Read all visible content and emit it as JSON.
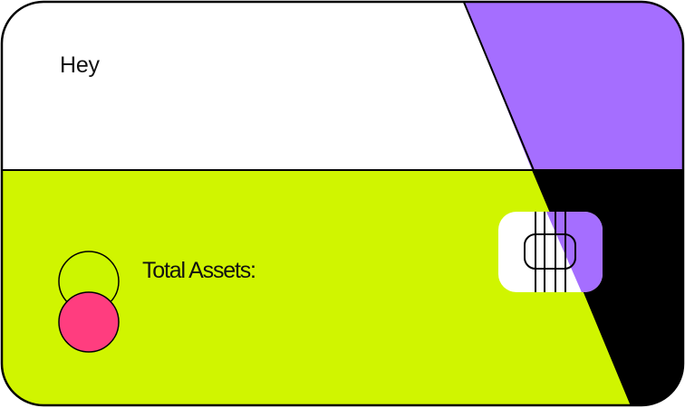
{
  "card": {
    "greeting": "Hey",
    "total_assets_label": "Total Assets:",
    "colors": {
      "top_panel": "#ffffff",
      "bottom_panel": "#d0f500",
      "top_right_accent": "#a56eff",
      "bottom_right_accent": "#000000",
      "chip_background": "#ffffff",
      "chip_accent": "#a56eff",
      "logo_circle_outline": "#ccf600",
      "logo_circle_filled": "#ff3d7f",
      "outline": "#000000"
    },
    "icons": {
      "chip": "sim-chip-icon",
      "logo": "two-circles-logo-icon"
    }
  }
}
